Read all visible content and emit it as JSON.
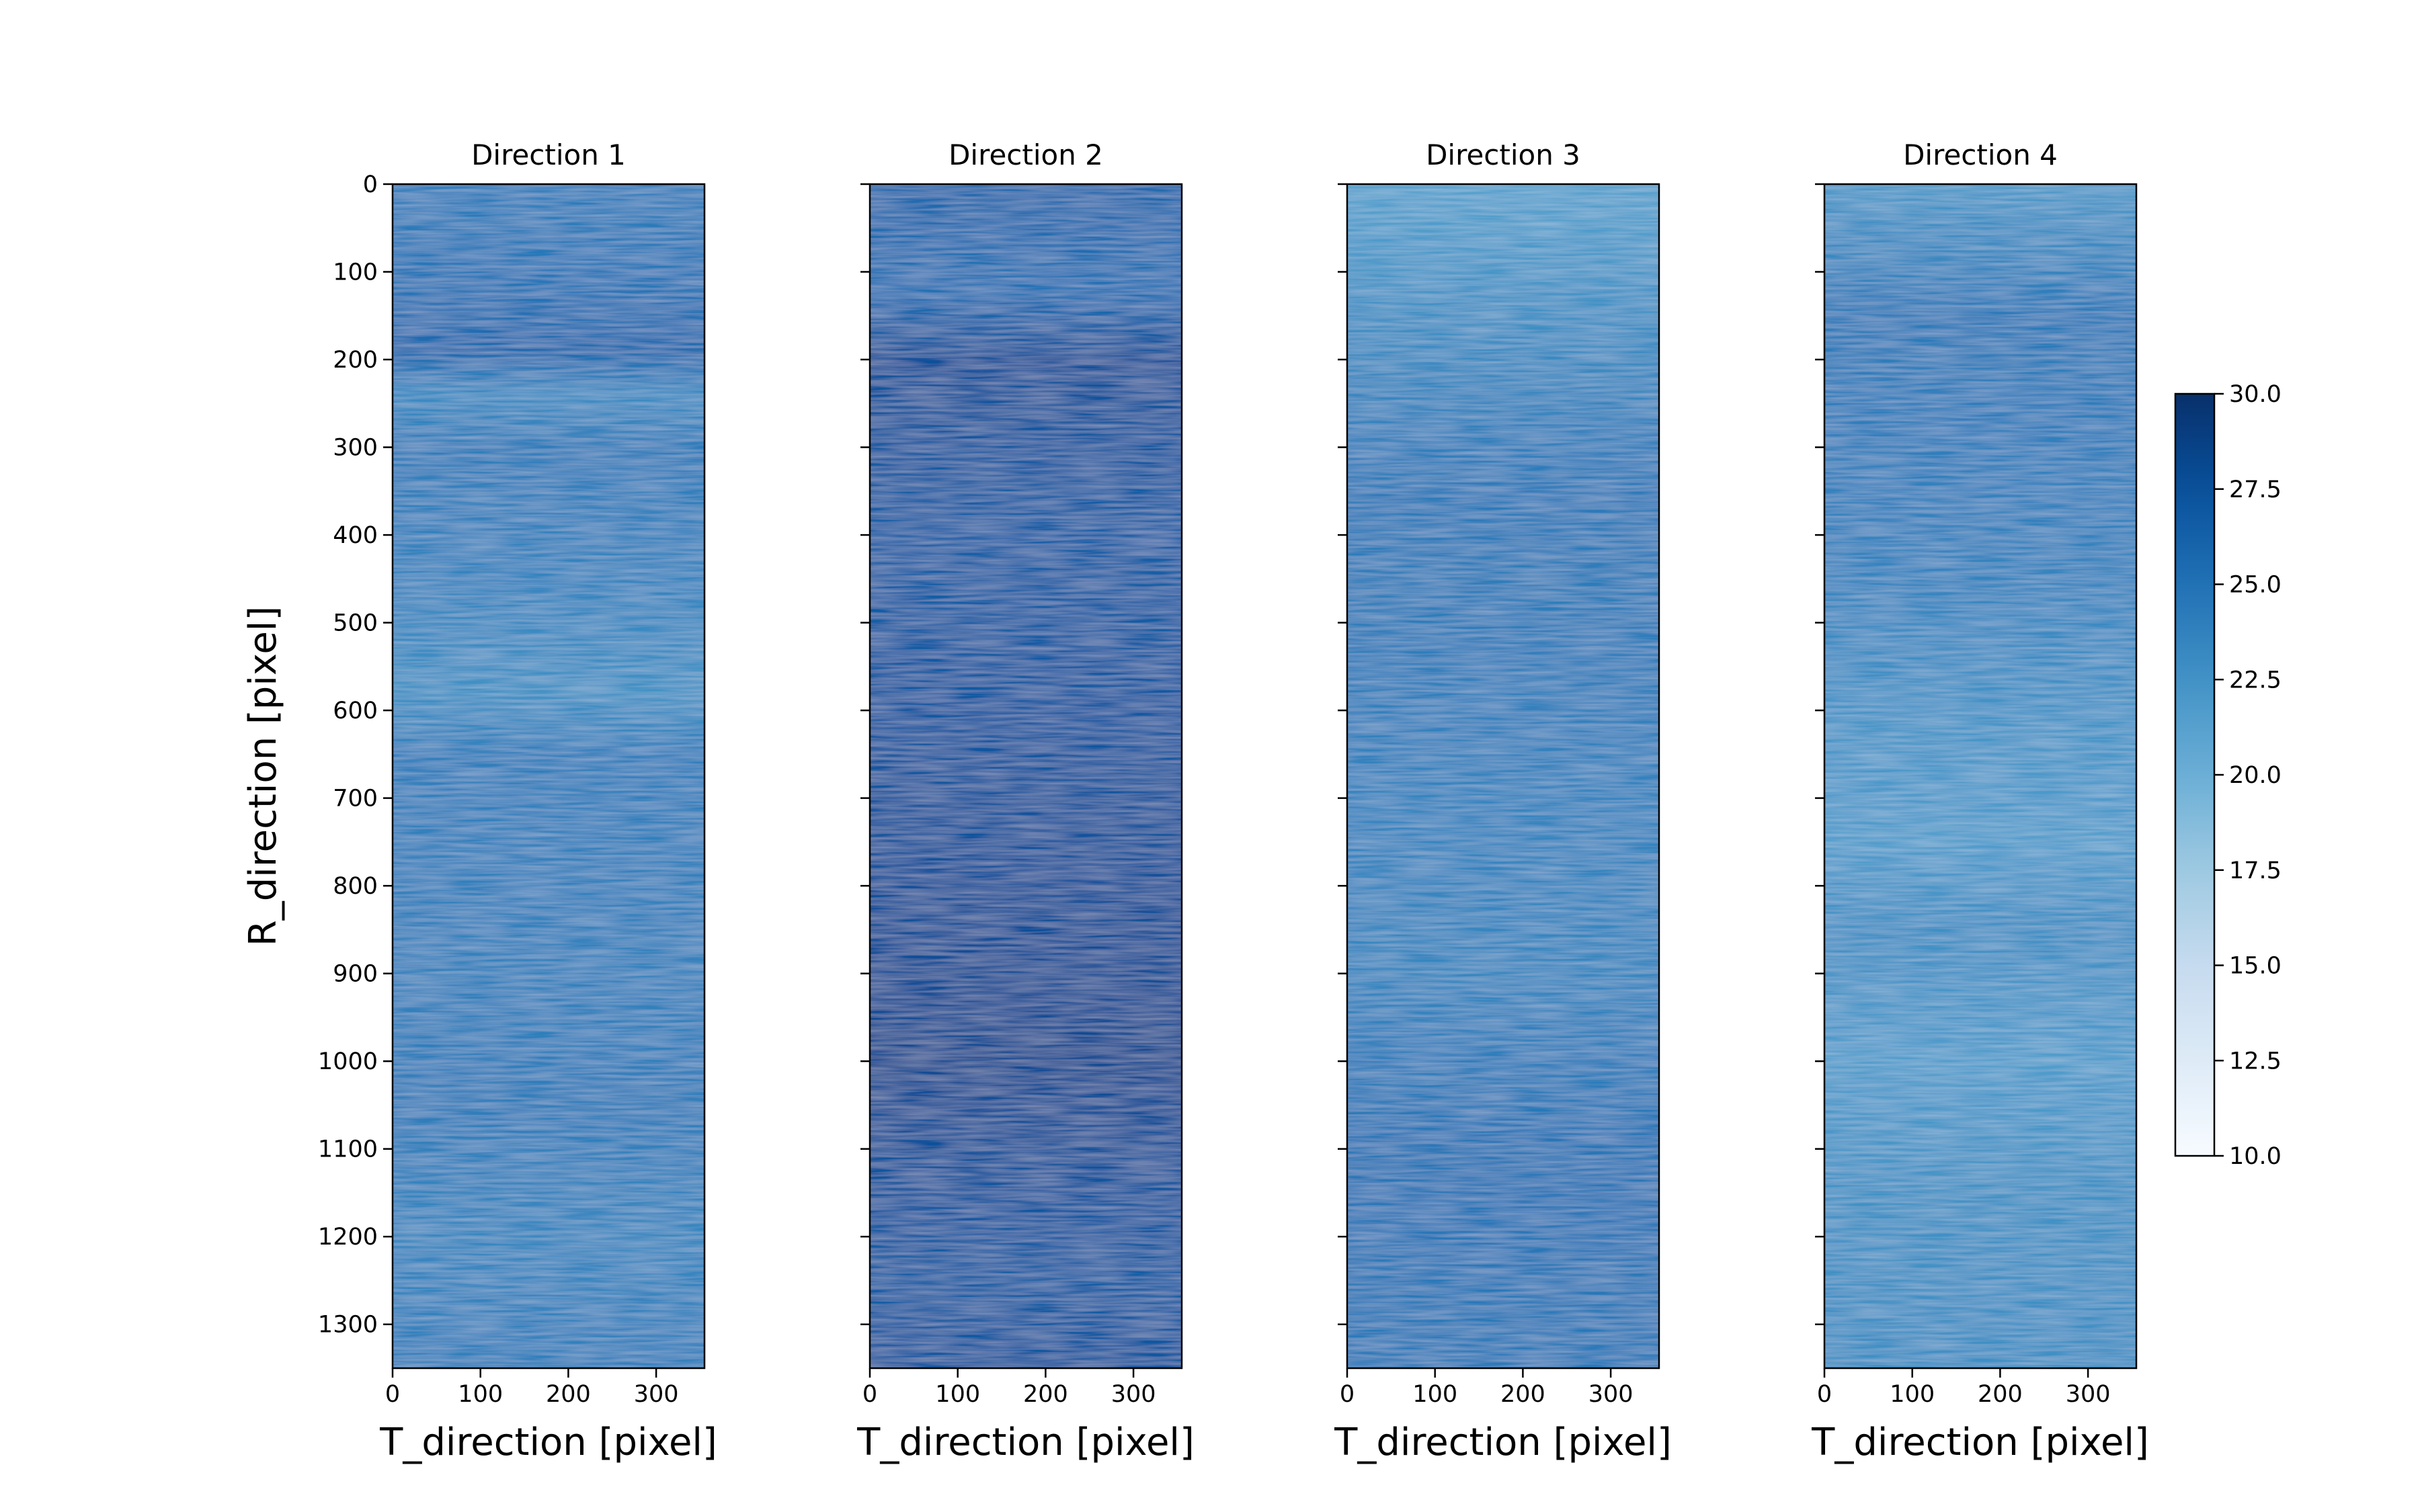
{
  "chart_data": {
    "type": "heatmap",
    "colormap": "Blues",
    "ylabel": "R_direction [pixel]",
    "xlabel": "T_direction [pixel]",
    "xlim": [
      0,
      355
    ],
    "ylim": [
      1350,
      0
    ],
    "x_ticks": [
      "0",
      "100",
      "200",
      "300"
    ],
    "y_ticks": [
      "0",
      "100",
      "200",
      "300",
      "400",
      "500",
      "600",
      "700",
      "800",
      "900",
      "1000",
      "1100",
      "1200",
      "1300"
    ],
    "panels": [
      {
        "title": "Direction 1",
        "mean_value": 23.8,
        "bands": [
          {
            "r": 0,
            "value": 24.0
          },
          {
            "r": 100,
            "value": 24.6
          },
          {
            "r": 190,
            "value": 25.6
          },
          {
            "r": 240,
            "value": 23.0
          },
          {
            "r": 300,
            "value": 24.2
          },
          {
            "r": 450,
            "value": 23.6
          },
          {
            "r": 580,
            "value": 22.6
          },
          {
            "r": 650,
            "value": 24.0
          },
          {
            "r": 900,
            "value": 23.8
          },
          {
            "r": 1050,
            "value": 24.2
          },
          {
            "r": 1200,
            "value": 23.4
          },
          {
            "r": 1350,
            "value": 24.0
          }
        ]
      },
      {
        "title": "Direction 2",
        "mean_value": 27.0,
        "bands": [
          {
            "r": 0,
            "value": 25.8
          },
          {
            "r": 120,
            "value": 25.0
          },
          {
            "r": 200,
            "value": 27.6
          },
          {
            "r": 400,
            "value": 26.4
          },
          {
            "r": 600,
            "value": 27.0
          },
          {
            "r": 800,
            "value": 27.6
          },
          {
            "r": 1000,
            "value": 28.0
          },
          {
            "r": 1150,
            "value": 27.2
          },
          {
            "r": 1250,
            "value": 26.6
          },
          {
            "r": 1350,
            "value": 27.2
          }
        ]
      },
      {
        "title": "Direction 3",
        "mean_value": 24.0,
        "bands": [
          {
            "r": 0,
            "value": 21.2
          },
          {
            "r": 80,
            "value": 22.0
          },
          {
            "r": 200,
            "value": 23.2
          },
          {
            "r": 350,
            "value": 24.4
          },
          {
            "r": 500,
            "value": 24.2
          },
          {
            "r": 700,
            "value": 23.6
          },
          {
            "r": 900,
            "value": 23.4
          },
          {
            "r": 1100,
            "value": 24.8
          },
          {
            "r": 1350,
            "value": 24.4
          }
        ]
      },
      {
        "title": "Direction 4",
        "mean_value": 22.8,
        "bands": [
          {
            "r": 0,
            "value": 22.0
          },
          {
            "r": 150,
            "value": 24.4
          },
          {
            "r": 300,
            "value": 24.0
          },
          {
            "r": 450,
            "value": 23.6
          },
          {
            "r": 600,
            "value": 22.4
          },
          {
            "r": 750,
            "value": 21.6
          },
          {
            "r": 850,
            "value": 22.8
          },
          {
            "r": 1000,
            "value": 21.6
          },
          {
            "r": 1150,
            "value": 22.6
          },
          {
            "r": 1350,
            "value": 22.8
          }
        ]
      }
    ],
    "colorbar": {
      "min": 10.0,
      "max": 30.0,
      "ticks": [
        "10.0",
        "12.5",
        "15.0",
        "17.5",
        "20.0",
        "22.5",
        "25.0",
        "27.5",
        "30.0"
      ]
    }
  }
}
